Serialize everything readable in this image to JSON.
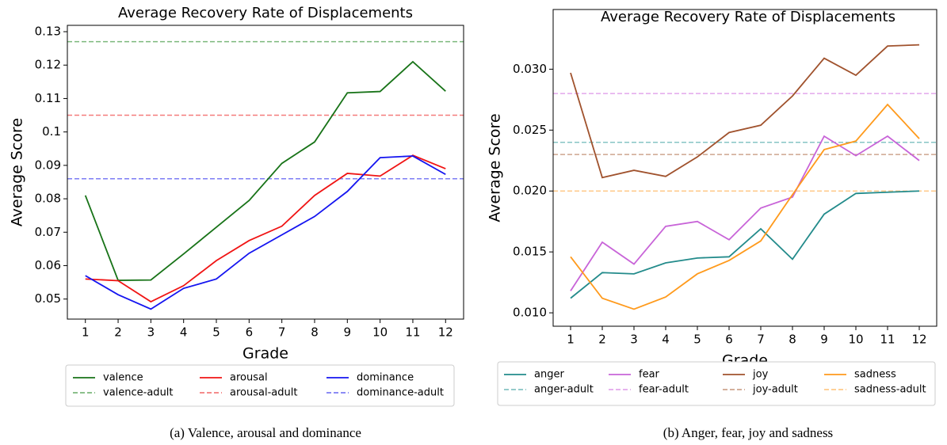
{
  "chart_data": [
    {
      "type": "line",
      "title": "Average Recovery Rate of Displacements",
      "x_label": "Grade",
      "y_label": "Average Score",
      "caption": "(a) Valence, arousal and dominance",
      "x": [
        1,
        2,
        3,
        4,
        5,
        6,
        7,
        8,
        9,
        10,
        11,
        12
      ],
      "xlim": [
        0.45,
        12.55
      ],
      "xticks": [
        1,
        2,
        3,
        4,
        5,
        6,
        7,
        8,
        9,
        10,
        11,
        12
      ],
      "ylim": [
        0.044,
        0.1319
      ],
      "yticks": [
        0.05,
        0.06,
        0.07,
        0.08,
        0.09,
        0.1,
        0.11,
        0.12,
        0.13
      ],
      "legend": "below",
      "series": [
        {
          "name": "valence",
          "color": "#187318",
          "values": [
            0.081,
            0.0556,
            0.0557,
            0.0635,
            0.0715,
            0.0795,
            0.0906,
            0.097,
            0.1117,
            0.1121,
            0.121,
            0.1122
          ]
        },
        {
          "name": "arousal",
          "color": "#f01414",
          "values": [
            0.056,
            0.0555,
            0.0492,
            0.054,
            0.0615,
            0.0675,
            0.0718,
            0.081,
            0.0876,
            0.0868,
            0.093,
            0.089
          ]
        },
        {
          "name": "dominance",
          "color": "#1414f0",
          "values": [
            0.057,
            0.0513,
            0.047,
            0.0532,
            0.056,
            0.0637,
            0.0692,
            0.0747,
            0.0822,
            0.0923,
            0.0928,
            0.0873
          ]
        }
      ],
      "reference_lines": [
        {
          "name": "valence-adult",
          "color": "#7cb87c",
          "value": 0.127
        },
        {
          "name": "arousal-adult",
          "color": "#f47c7c",
          "value": 0.105
        },
        {
          "name": "dominance-adult",
          "color": "#7c7cf4",
          "value": 0.086
        }
      ]
    },
    {
      "type": "line",
      "title": "Average Recovery Rate of Displacements",
      "x_label": "Grade",
      "y_label": "Average Score",
      "caption": "(b) Anger, fear, joy and sadness",
      "x": [
        1,
        2,
        3,
        4,
        5,
        6,
        7,
        8,
        9,
        10,
        11,
        12
      ],
      "xlim": [
        0.45,
        12.55
      ],
      "xticks": [
        1,
        2,
        3,
        4,
        5,
        6,
        7,
        8,
        9,
        10,
        11,
        12
      ],
      "ylim": [
        0.0089,
        0.0349
      ],
      "yticks": [
        {
          "value": 0.01,
          "label": "0.010"
        },
        {
          "value": 0.015,
          "label": "0.015"
        },
        {
          "value": 0.02,
          "label": "0.020"
        },
        {
          "value": 0.025,
          "label": "0.025"
        },
        {
          "value": 0.03,
          "label": "0.030"
        }
      ],
      "legend": "below",
      "series": [
        {
          "name": "anger",
          "color": "#238b8b",
          "values": [
            0.0112,
            0.0133,
            0.0132,
            0.0141,
            0.0145,
            0.0146,
            0.0169,
            0.0144,
            0.0181,
            0.0198,
            0.0199,
            0.02
          ]
        },
        {
          "name": "fear",
          "color": "#c864d8",
          "values": [
            0.0118,
            0.0158,
            0.014,
            0.0171,
            0.0175,
            0.016,
            0.0186,
            0.0195,
            0.0245,
            0.0229,
            0.0245,
            0.0225
          ]
        },
        {
          "name": "joy",
          "color": "#a0522d",
          "values": [
            0.0297,
            0.0211,
            0.0217,
            0.0212,
            0.0228,
            0.0248,
            0.0254,
            0.0278,
            0.0309,
            0.0295,
            0.0319,
            0.032
          ]
        },
        {
          "name": "sadness",
          "color": "#ff9a1c",
          "values": [
            0.0146,
            0.0112,
            0.0103,
            0.0113,
            0.0132,
            0.0143,
            0.0159,
            0.0197,
            0.0234,
            0.0241,
            0.0271,
            0.0243
          ]
        }
      ],
      "reference_lines": [
        {
          "name": "anger-adult",
          "color": "#86c4c4",
          "value": 0.024
        },
        {
          "name": "fear-adult",
          "color": "#e3a8ec",
          "value": 0.028
        },
        {
          "name": "joy-adult",
          "color": "#cea58f",
          "value": 0.023
        },
        {
          "name": "sadness-adult",
          "color": "#ffc98a",
          "value": 0.02
        }
      ]
    }
  ]
}
